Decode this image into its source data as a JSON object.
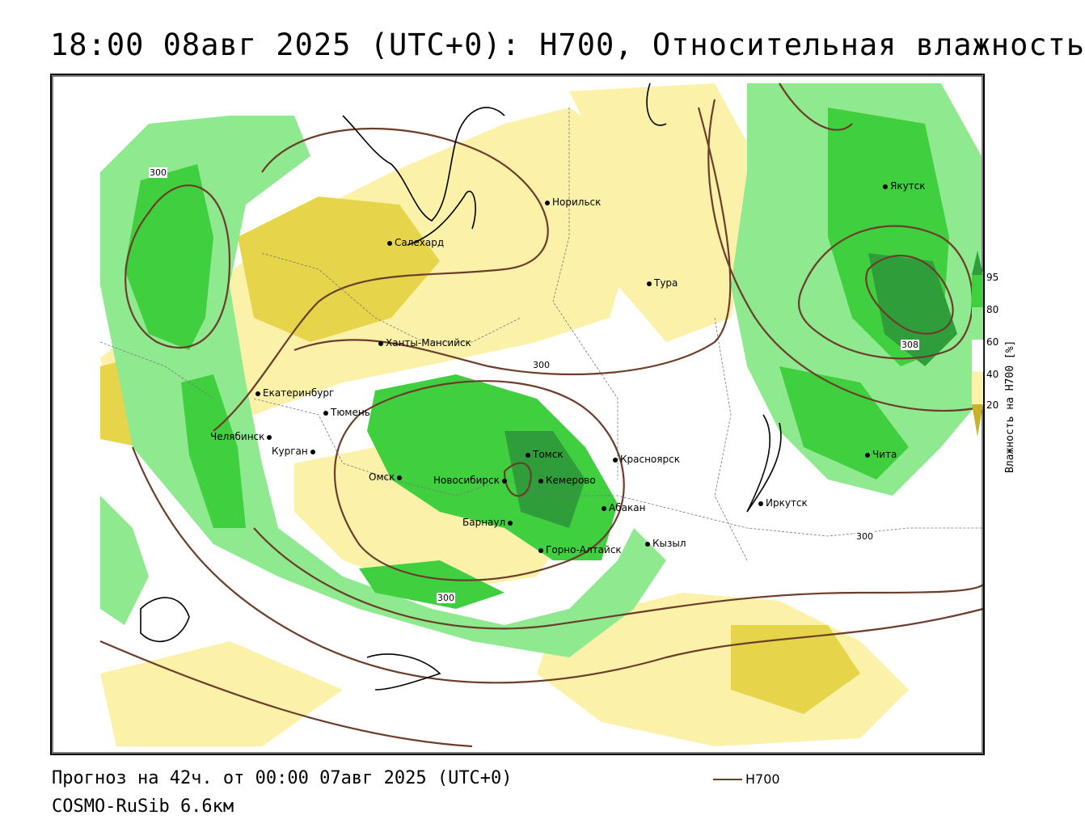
{
  "title": "18:00 08авг 2025 (UTC+0): H700, Относительная влажность",
  "footer": {
    "forecast": "Прогноз на 42ч. от 00:00 07авг 2025 (UTC+0)",
    "model": "COSMO-RuSib 6.6км",
    "legend_label": "H700"
  },
  "colorbar": {
    "title": "Влажность на H700 [%]",
    "ticks": [
      "95",
      "80",
      "60",
      "40",
      "20"
    ],
    "colors": [
      "#2f9e3a",
      "#3fcf3f",
      "#8fe98f",
      "#d4f5d4",
      "#ffffff",
      "#fbf1a8",
      "#e6d54a",
      "#c9b22a"
    ]
  },
  "contour_labels": [
    "300",
    "300",
    "300",
    "300",
    "308"
  ],
  "cities": [
    {
      "name": "Норильск"
    },
    {
      "name": "Салехард"
    },
    {
      "name": "Тура"
    },
    {
      "name": "Якутск"
    },
    {
      "name": "Ханты-Мансийск"
    },
    {
      "name": "Екатеринбург"
    },
    {
      "name": "Тюмень"
    },
    {
      "name": "Челябинск"
    },
    {
      "name": "Курган"
    },
    {
      "name": "Омск"
    },
    {
      "name": "Новосибирск"
    },
    {
      "name": "Томск"
    },
    {
      "name": "Кемерово"
    },
    {
      "name": "Красноярск"
    },
    {
      "name": "Абакан"
    },
    {
      "name": "Барнаул"
    },
    {
      "name": "Горно-Алтайск"
    },
    {
      "name": "Кызыл"
    },
    {
      "name": "Иркутск"
    },
    {
      "name": "Чита"
    }
  ]
}
